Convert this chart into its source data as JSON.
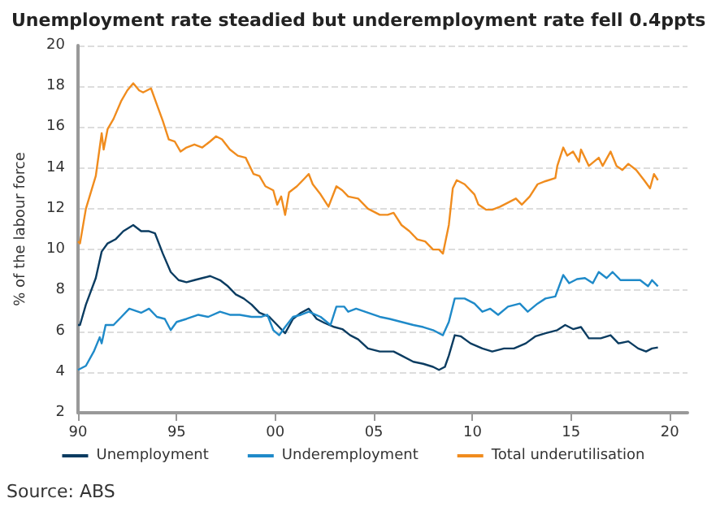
{
  "chart_data": {
    "type": "line",
    "title": "Unemployment rate steadied but underemployment rate fell 0.4ppts",
    "ylabel": "% of the labour force",
    "annotations": [
      "Source: ABS"
    ],
    "xlim": [
      1990,
      2020.9
    ],
    "xticks": [
      {
        "value": 1990,
        "label": "90"
      },
      {
        "value": 1995,
        "label": "95"
      },
      {
        "value": 2000,
        "label": "00"
      },
      {
        "value": 2005,
        "label": "05"
      },
      {
        "value": 2010,
        "label": "10"
      },
      {
        "value": 2015,
        "label": "15"
      },
      {
        "value": 2020,
        "label": "20"
      }
    ],
    "ylim": [
      2,
      20
    ],
    "yticks": [
      2,
      4,
      6,
      8,
      10,
      12,
      14,
      16,
      18,
      20
    ],
    "grid": "y",
    "legend": "bottom",
    "marker": "none",
    "line_style": "solid",
    "series": [
      {
        "name": "Unemployment",
        "color": "#0b3c61",
        "x": [
          1990.0,
          1990.1,
          1990.4,
          1990.9,
          1991.2,
          1991.5,
          1991.9,
          1992.3,
          1992.8,
          1993.2,
          1993.6,
          1993.9,
          1994.3,
          1994.7,
          1995.1,
          1995.5,
          1995.9,
          1996.3,
          1996.7,
          1997.2,
          1997.6,
          1998.0,
          1998.4,
          1998.8,
          1999.2,
          1999.7,
          2000.1,
          2000.5,
          2000.9,
          2001.3,
          2001.7,
          2002.1,
          2002.5,
          2003.0,
          2003.4,
          2003.8,
          2004.2,
          2004.7,
          2005.3,
          2006.0,
          2006.4,
          2007.0,
          2007.5,
          2008.0,
          2008.3,
          2008.6,
          2008.8,
          2009.1,
          2009.4,
          2009.9,
          2010.5,
          2011.0,
          2011.6,
          2012.1,
          2012.7,
          2013.2,
          2013.7,
          2014.3,
          2014.7,
          2015.1,
          2015.5,
          2015.9,
          2016.5,
          2017.0,
          2017.4,
          2017.9,
          2018.4,
          2018.8,
          2019.1,
          2019.4
        ],
        "values": [
          6.3,
          6.3,
          7.3,
          8.6,
          9.9,
          10.3,
          10.5,
          10.9,
          11.2,
          10.9,
          10.9,
          10.8,
          9.8,
          8.9,
          8.5,
          8.4,
          8.5,
          8.6,
          8.7,
          8.5,
          8.2,
          7.8,
          7.6,
          7.3,
          6.9,
          6.7,
          6.3,
          5.9,
          6.6,
          6.9,
          7.1,
          6.6,
          6.4,
          6.2,
          6.1,
          5.8,
          5.6,
          5.15,
          5.0,
          5.0,
          4.8,
          4.5,
          4.4,
          4.25,
          4.1,
          4.25,
          4.8,
          5.8,
          5.75,
          5.4,
          5.15,
          5.0,
          5.15,
          5.15,
          5.4,
          5.75,
          5.9,
          6.05,
          6.3,
          6.1,
          6.2,
          5.65,
          5.65,
          5.8,
          5.4,
          5.5,
          5.15,
          5.0,
          5.15,
          5.2
        ]
      },
      {
        "name": "Underemployment",
        "color": "#1f8ac9",
        "x": [
          1990.0,
          1990.4,
          1990.8,
          1991.1,
          1991.2,
          1991.4,
          1991.8,
          1992.2,
          1992.6,
          1993.2,
          1993.6,
          1994.0,
          1994.4,
          1994.7,
          1995.0,
          1995.5,
          1996.1,
          1996.6,
          1997.2,
          1997.7,
          1998.2,
          1998.8,
          1999.3,
          1999.6,
          1999.9,
          2000.2,
          2000.5,
          2000.9,
          2001.3,
          2001.7,
          2002.3,
          2002.8,
          2003.1,
          2003.5,
          2003.7,
          2004.1,
          2004.7,
          2005.3,
          2005.8,
          2006.4,
          2007.0,
          2007.5,
          2008.0,
          2008.5,
          2008.8,
          2009.1,
          2009.6,
          2010.1,
          2010.5,
          2010.9,
          2011.3,
          2011.8,
          2012.4,
          2012.8,
          2013.3,
          2013.7,
          2014.2,
          2014.6,
          2014.9,
          2015.3,
          2015.7,
          2016.1,
          2016.4,
          2016.8,
          2017.1,
          2017.5,
          2018.1,
          2018.5,
          2018.9,
          2019.1,
          2019.4
        ],
        "values": [
          4.1,
          4.3,
          5.0,
          5.7,
          5.4,
          6.3,
          6.3,
          6.7,
          7.1,
          6.9,
          7.1,
          6.7,
          6.6,
          6.05,
          6.45,
          6.6,
          6.8,
          6.7,
          6.95,
          6.8,
          6.8,
          6.7,
          6.7,
          6.8,
          6.05,
          5.8,
          6.2,
          6.7,
          6.8,
          6.95,
          6.7,
          6.3,
          7.2,
          7.2,
          6.95,
          7.1,
          6.9,
          6.7,
          6.6,
          6.45,
          6.3,
          6.2,
          6.05,
          5.8,
          6.45,
          7.6,
          7.6,
          7.35,
          6.95,
          7.1,
          6.8,
          7.2,
          7.35,
          6.95,
          7.35,
          7.6,
          7.7,
          8.75,
          8.35,
          8.55,
          8.6,
          8.35,
          8.9,
          8.6,
          8.9,
          8.5,
          8.5,
          8.5,
          8.2,
          8.5,
          8.2
        ]
      },
      {
        "name": "Total underutilisation",
        "color": "#f08c1e",
        "x": [
          1990.0,
          1990.1,
          1990.4,
          1990.9,
          1991.2,
          1991.3,
          1991.5,
          1991.8,
          1992.2,
          1992.5,
          1992.8,
          1993.1,
          1993.3,
          1993.7,
          1994.0,
          1994.3,
          1994.6,
          1994.9,
          1995.2,
          1995.5,
          1995.9,
          1996.3,
          1996.7,
          1997.0,
          1997.3,
          1997.7,
          1998.1,
          1998.5,
          1998.9,
          1999.2,
          1999.5,
          1999.9,
          2000.1,
          2000.3,
          2000.5,
          2000.7,
          2001.1,
          2001.5,
          2001.7,
          2001.9,
          2002.3,
          2002.7,
          2003.1,
          2003.4,
          2003.7,
          2004.2,
          2004.7,
          2005.3,
          2005.7,
          2006.0,
          2006.4,
          2006.8,
          2007.2,
          2007.6,
          2008.0,
          2008.3,
          2008.5,
          2008.8,
          2009.0,
          2009.2,
          2009.6,
          2010.1,
          2010.3,
          2010.7,
          2011.0,
          2011.4,
          2011.8,
          2012.2,
          2012.5,
          2012.9,
          2013.3,
          2013.7,
          2014.2,
          2014.3,
          2014.6,
          2014.8,
          2015.1,
          2015.4,
          2015.5,
          2015.9,
          2016.4,
          2016.6,
          2017.0,
          2017.3,
          2017.6,
          2017.9,
          2018.3,
          2018.7,
          2019.0,
          2019.2,
          2019.4
        ],
        "values": [
          10.4,
          10.3,
          12.0,
          13.6,
          15.7,
          14.9,
          15.9,
          16.4,
          17.3,
          17.8,
          18.15,
          17.8,
          17.7,
          17.9,
          17.1,
          16.3,
          15.4,
          15.3,
          14.8,
          15.0,
          15.15,
          15.0,
          15.3,
          15.55,
          15.4,
          14.9,
          14.6,
          14.5,
          13.7,
          13.6,
          13.1,
          12.9,
          12.2,
          12.6,
          11.7,
          12.8,
          13.1,
          13.5,
          13.7,
          13.2,
          12.7,
          12.1,
          13.1,
          12.9,
          12.6,
          12.5,
          12.0,
          11.7,
          11.7,
          11.8,
          11.2,
          10.9,
          10.5,
          10.4,
          10.0,
          10.0,
          9.8,
          11.2,
          13.0,
          13.4,
          13.2,
          12.7,
          12.2,
          11.95,
          11.95,
          12.1,
          12.3,
          12.5,
          12.2,
          12.6,
          13.2,
          13.35,
          13.5,
          14.1,
          15.0,
          14.6,
          14.8,
          14.3,
          14.9,
          14.1,
          14.5,
          14.1,
          14.8,
          14.1,
          13.9,
          14.2,
          13.9,
          13.4,
          13.0,
          13.7,
          13.4
        ]
      }
    ]
  }
}
